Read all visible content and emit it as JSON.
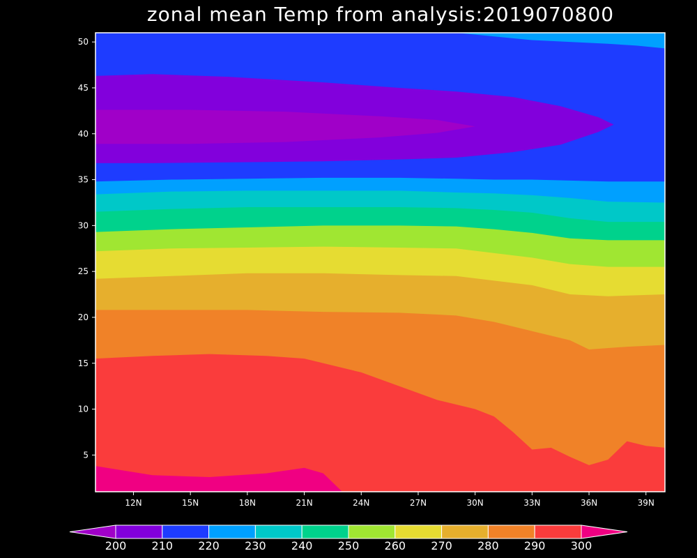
{
  "chart_data": {
    "type": "heatmap",
    "title": "zonal mean Temp from analysis:2019070800",
    "xlabel": "",
    "ylabel": "",
    "xlim": [
      10,
      40
    ],
    "ylim": [
      1,
      51
    ],
    "x_ticks": [
      {
        "value": 12,
        "label": "12N"
      },
      {
        "value": 15,
        "label": "15N"
      },
      {
        "value": 18,
        "label": "18N"
      },
      {
        "value": 21,
        "label": "21N"
      },
      {
        "value": 24,
        "label": "24N"
      },
      {
        "value": 27,
        "label": "27N"
      },
      {
        "value": 30,
        "label": "30N"
      },
      {
        "value": 33,
        "label": "33N"
      },
      {
        "value": 36,
        "label": "36N"
      },
      {
        "value": 39,
        "label": "39N"
      }
    ],
    "y_ticks": [
      5,
      10,
      15,
      20,
      25,
      30,
      35,
      40,
      45,
      50
    ],
    "grid": false,
    "legend": "bottom colorbar",
    "contour_levels": [
      200,
      210,
      220,
      230,
      240,
      250,
      260,
      270,
      280,
      290,
      300
    ],
    "colors": [
      "#a000c8",
      "#8200dc",
      "#1e3cff",
      "#00a0ff",
      "#00c8c8",
      "#00d28c",
      "#a0e632",
      "#e6dc32",
      "#e6af2d",
      "#f08228",
      "#fa3c3c",
      "#f00082"
    ],
    "bands": [
      {
        "name": "300+",
        "color": "#f00082",
        "boundary": [
          [
            10,
            3.8
          ],
          [
            13,
            2.8
          ],
          [
            16,
            2.6
          ],
          [
            19,
            3
          ],
          [
            21,
            3.6
          ],
          [
            22,
            3
          ],
          [
            23,
            1
          ]
        ]
      },
      {
        "name": "290-300",
        "color": "#fa3c3c",
        "boundary": [
          [
            10,
            15.5
          ],
          [
            13,
            15.8
          ],
          [
            16,
            16
          ],
          [
            19,
            15.8
          ],
          [
            21,
            15.5
          ],
          [
            24,
            14
          ],
          [
            26,
            12.5
          ],
          [
            28,
            11
          ],
          [
            30,
            10
          ],
          [
            31,
            9.2
          ],
          [
            32,
            7.5
          ],
          [
            33,
            5.6
          ],
          [
            34,
            5.8
          ],
          [
            35,
            4.8
          ],
          [
            36,
            3.9
          ],
          [
            37,
            4.5
          ],
          [
            38,
            6.5
          ],
          [
            39,
            6
          ],
          [
            40,
            5.8
          ]
        ]
      },
      {
        "name": "280-290",
        "color": "#f08228",
        "boundary": [
          [
            10,
            20.8
          ],
          [
            14,
            20.8
          ],
          [
            18,
            20.8
          ],
          [
            22,
            20.6
          ],
          [
            26,
            20.5
          ],
          [
            29,
            20.2
          ],
          [
            31,
            19.5
          ],
          [
            33,
            18.5
          ],
          [
            35,
            17.5
          ],
          [
            36,
            16.5
          ],
          [
            38,
            16.8
          ],
          [
            40,
            17
          ]
        ]
      },
      {
        "name": "270-280",
        "color": "#e6af2d",
        "boundary": [
          [
            10,
            24.2
          ],
          [
            14,
            24.5
          ],
          [
            18,
            24.8
          ],
          [
            22,
            24.8
          ],
          [
            26,
            24.6
          ],
          [
            29,
            24.5
          ],
          [
            31,
            24
          ],
          [
            33,
            23.5
          ],
          [
            35,
            22.5
          ],
          [
            37,
            22.3
          ],
          [
            40,
            22.5
          ]
        ]
      },
      {
        "name": "260-270",
        "color": "#e6dc32",
        "boundary": [
          [
            10,
            27.2
          ],
          [
            14,
            27.5
          ],
          [
            18,
            27.6
          ],
          [
            22,
            27.7
          ],
          [
            26,
            27.6
          ],
          [
            29,
            27.5
          ],
          [
            31,
            27
          ],
          [
            33,
            26.5
          ],
          [
            35,
            25.8
          ],
          [
            37,
            25.5
          ],
          [
            40,
            25.5
          ]
        ]
      },
      {
        "name": "250-260",
        "color": "#a0e632",
        "boundary": [
          [
            10,
            29.3
          ],
          [
            14,
            29.6
          ],
          [
            18,
            29.8
          ],
          [
            22,
            30
          ],
          [
            26,
            30
          ],
          [
            29,
            29.9
          ],
          [
            31,
            29.6
          ],
          [
            33,
            29.2
          ],
          [
            35,
            28.6
          ],
          [
            37,
            28.4
          ],
          [
            40,
            28.4
          ]
        ]
      },
      {
        "name": "240-250",
        "color": "#00d28c",
        "boundary": [
          [
            10,
            31.5
          ],
          [
            14,
            31.8
          ],
          [
            18,
            32
          ],
          [
            22,
            32
          ],
          [
            26,
            32
          ],
          [
            29,
            31.9
          ],
          [
            31,
            31.7
          ],
          [
            33,
            31.4
          ],
          [
            35,
            30.8
          ],
          [
            37,
            30.4
          ],
          [
            40,
            30.4
          ]
        ]
      },
      {
        "name": "230-240",
        "color": "#00c8c8",
        "boundary": [
          [
            10,
            33.4
          ],
          [
            14,
            33.7
          ],
          [
            18,
            33.8
          ],
          [
            22,
            33.8
          ],
          [
            26,
            33.8
          ],
          [
            29,
            33.6
          ],
          [
            31,
            33.5
          ],
          [
            33,
            33.3
          ],
          [
            35,
            33
          ],
          [
            37,
            32.6
          ],
          [
            40,
            32.5
          ]
        ]
      },
      {
        "name": "220-230",
        "color": "#00a0ff",
        "boundary": [
          [
            10,
            34.8
          ],
          [
            14,
            35
          ],
          [
            18,
            35.1
          ],
          [
            22,
            35.2
          ],
          [
            26,
            35.2
          ],
          [
            29,
            35.1
          ],
          [
            31,
            35
          ],
          [
            33,
            35
          ],
          [
            35,
            34.9
          ],
          [
            37,
            34.8
          ],
          [
            40,
            34.8
          ]
        ]
      },
      {
        "name": "210-220",
        "color": "#1e3cff",
        "boundary": [
          [
            10,
            51
          ],
          [
            40,
            51
          ]
        ]
      },
      {
        "name": "220-230 top",
        "color": "#00a0ff",
        "boundary": [
          [
            40,
            51
          ],
          [
            29,
            51
          ],
          [
            31,
            50.6
          ],
          [
            33,
            50.2
          ],
          [
            35,
            50
          ],
          [
            37,
            49.8
          ],
          [
            38.5,
            49.6
          ],
          [
            40,
            49.3
          ]
        ]
      },
      {
        "name": "200-210",
        "color": "#8200dc",
        "boundary": [
          [
            10,
            46.3
          ],
          [
            13,
            46.5
          ],
          [
            17,
            46.2
          ],
          [
            22,
            45.6
          ],
          [
            26,
            45
          ],
          [
            29,
            44.6
          ],
          [
            32,
            44
          ],
          [
            34.5,
            43
          ],
          [
            36.5,
            41.8
          ],
          [
            37.3,
            41
          ],
          [
            36.5,
            40.2
          ],
          [
            34.5,
            38.8
          ],
          [
            32,
            38
          ],
          [
            29,
            37.4
          ],
          [
            26,
            37.2
          ],
          [
            22,
            37
          ],
          [
            18,
            36.9
          ],
          [
            13,
            36.8
          ],
          [
            10,
            36.8
          ]
        ]
      },
      {
        "name": "<200",
        "color": "#a000c8",
        "boundary": [
          [
            10,
            42.6
          ],
          [
            15,
            42.6
          ],
          [
            20,
            42.4
          ],
          [
            25,
            41.9
          ],
          [
            28,
            41.5
          ],
          [
            30,
            40.8
          ],
          [
            28,
            40.1
          ],
          [
            25,
            39.6
          ],
          [
            20,
            39.1
          ],
          [
            15,
            38.9
          ],
          [
            10,
            38.9
          ]
        ]
      }
    ]
  }
}
